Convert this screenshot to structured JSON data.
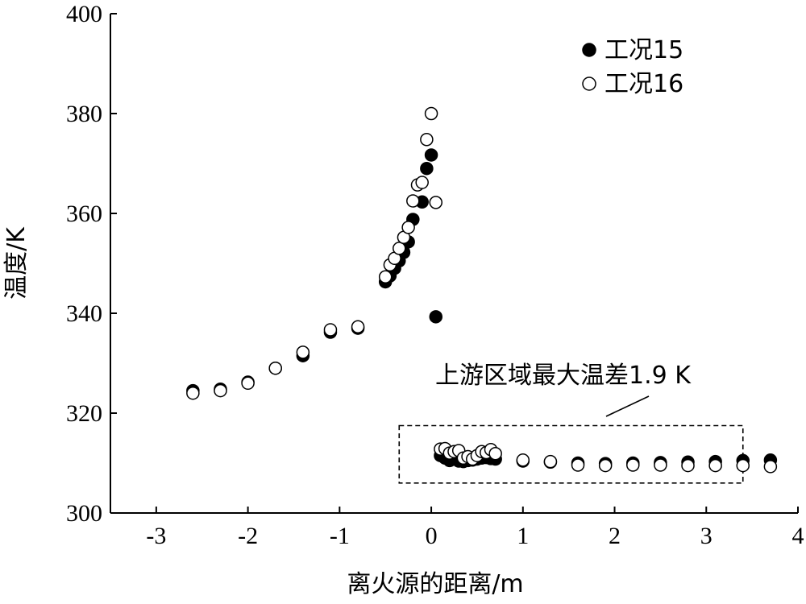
{
  "chart_data": {
    "type": "scatter",
    "xlabel": "离火源的距离/m",
    "ylabel": "温度/K",
    "xlim": [
      -3.5,
      4.0
    ],
    "ylim": [
      300,
      400
    ],
    "xticks": [
      -3,
      -2,
      -1,
      0,
      1,
      2,
      3,
      4
    ],
    "yticks": [
      300,
      320,
      340,
      360,
      380,
      400
    ],
    "xtick_labels": [
      "-3",
      "-2",
      "-1",
      "0",
      "1",
      "2",
      "3",
      "4"
    ],
    "ytick_labels": [
      "300",
      "320",
      "340",
      "360",
      "380",
      "400"
    ],
    "legend_position": "top-right",
    "series": [
      {
        "name": "工况15",
        "marker": "filled-circle",
        "x": [
          -2.6,
          -2.3,
          -2.0,
          -1.7,
          -1.4,
          -1.1,
          -0.8,
          -0.5,
          -0.45,
          -0.4,
          -0.35,
          -0.3,
          -0.25,
          -0.2,
          -0.1,
          -0.05,
          0.0,
          0.05,
          0.1,
          0.15,
          0.2,
          0.25,
          0.3,
          0.35,
          0.4,
          0.45,
          0.5,
          0.55,
          0.6,
          0.65,
          0.7,
          1.0,
          1.3,
          1.6,
          1.9,
          2.2,
          2.5,
          2.8,
          3.1,
          3.4,
          3.7
        ],
        "y": [
          324.5,
          324.8,
          326.2,
          329.0,
          331.5,
          336.2,
          337.0,
          346.3,
          347.5,
          349.0,
          350.5,
          352.2,
          354.3,
          358.8,
          362.3,
          369.0,
          371.7,
          339.3,
          311.5,
          311.0,
          310.5,
          310.8,
          310.4,
          310.3,
          310.5,
          310.6,
          310.8,
          311.0,
          311.1,
          310.9,
          310.8,
          310.4,
          310.2,
          310.0,
          309.9,
          310.0,
          310.1,
          310.2,
          310.3,
          310.5,
          310.6
        ]
      },
      {
        "name": "工况16",
        "marker": "open-circle",
        "x": [
          -2.6,
          -2.3,
          -2.0,
          -1.7,
          -1.4,
          -1.1,
          -0.8,
          -0.5,
          -0.45,
          -0.4,
          -0.35,
          -0.3,
          -0.25,
          -0.2,
          -0.15,
          -0.1,
          -0.05,
          0.0,
          0.05,
          0.1,
          0.15,
          0.2,
          0.25,
          0.3,
          0.35,
          0.4,
          0.45,
          0.5,
          0.55,
          0.6,
          0.65,
          0.7,
          1.0,
          1.3,
          1.6,
          1.9,
          2.2,
          2.5,
          2.8,
          3.1,
          3.4,
          3.7
        ],
        "y": [
          324.0,
          324.5,
          326.0,
          329.0,
          332.2,
          336.7,
          337.3,
          347.3,
          349.7,
          351.0,
          353.0,
          355.2,
          357.2,
          362.5,
          365.7,
          366.2,
          374.8,
          380.0,
          362.2,
          312.8,
          312.9,
          312.0,
          312.3,
          312.5,
          311.0,
          311.3,
          310.8,
          311.5,
          312.3,
          312.1,
          312.7,
          311.9,
          310.6,
          310.3,
          309.6,
          309.5,
          309.6,
          309.6,
          309.5,
          309.5,
          309.5,
          309.3
        ]
      }
    ],
    "annotation": {
      "text": "上游区域最大温差1.9 K",
      "box_x": [
        -0.35,
        3.4
      ],
      "box_y": [
        306,
        317.5
      ]
    }
  },
  "colors": {
    "filled": "#000000",
    "open_fill": "#ffffff",
    "stroke": "#000000"
  }
}
